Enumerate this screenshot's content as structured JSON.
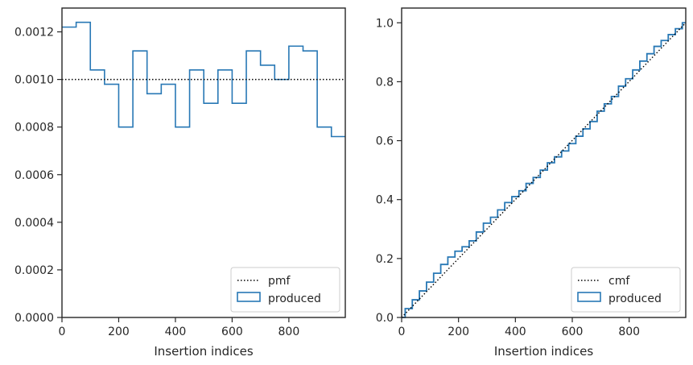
{
  "chart_data": [
    {
      "type": "histogram",
      "xlabel": "Insertion indices",
      "ylabel": "",
      "xlim": [
        0,
        999
      ],
      "ylim": [
        0,
        0.0013
      ],
      "x_ticks": [
        0,
        200,
        400,
        600,
        800
      ],
      "y_ticks": [
        0,
        0.0002,
        0.0004,
        0.0006,
        0.0008,
        0.001,
        0.0012
      ],
      "x_tick_labels": [
        "0",
        "200",
        "400",
        "600",
        "800"
      ],
      "y_tick_labels": [
        "0.0000",
        "0.0002",
        "0.0004",
        "0.0006",
        "0.0008",
        "0.0010",
        "0.0012"
      ],
      "bin_edges": [
        0,
        50,
        100,
        150,
        200,
        250,
        300,
        350,
        400,
        450,
        500,
        550,
        600,
        650,
        700,
        750,
        800,
        850,
        900,
        950,
        999
      ],
      "produced": [
        0.00122,
        0.00124,
        0.00104,
        0.00098,
        0.0008,
        0.00112,
        0.00094,
        0.00098,
        0.0008,
        0.00104,
        0.0009,
        0.00104,
        0.0009,
        0.00112,
        0.00106,
        0.001,
        0.00114,
        0.00112,
        0.0008,
        0.00076
      ],
      "pmf": 0.001,
      "legend": {
        "position": "lower right",
        "entries": [
          "pmf",
          "produced"
        ]
      },
      "colors": {
        "produced": "#2878b5",
        "pmf": "#000000"
      }
    },
    {
      "type": "line",
      "xlabel": "Insertion indices",
      "ylabel": "",
      "xlim": [
        0,
        999
      ],
      "ylim": [
        0,
        1.05
      ],
      "x_ticks": [
        0,
        200,
        400,
        600,
        800
      ],
      "y_ticks": [
        0,
        0.2,
        0.4,
        0.6,
        0.8,
        1.0
      ],
      "x_tick_labels": [
        "0",
        "200",
        "400",
        "600",
        "800"
      ],
      "y_tick_labels": [
        "0.0",
        "0.2",
        "0.4",
        "0.6",
        "0.8",
        "1.0"
      ],
      "produced": {
        "x": [
          0,
          25,
          50,
          75,
          100,
          125,
          150,
          175,
          200,
          225,
          250,
          275,
          300,
          325,
          350,
          375,
          400,
          425,
          450,
          475,
          500,
          525,
          550,
          575,
          600,
          625,
          650,
          675,
          700,
          725,
          750,
          775,
          800,
          825,
          850,
          875,
          900,
          925,
          950,
          975,
          999
        ],
        "y": [
          0,
          0.03,
          0.06,
          0.09,
          0.12,
          0.15,
          0.18,
          0.205,
          0.225,
          0.24,
          0.26,
          0.29,
          0.32,
          0.34,
          0.365,
          0.39,
          0.41,
          0.43,
          0.455,
          0.475,
          0.5,
          0.525,
          0.545,
          0.565,
          0.59,
          0.615,
          0.64,
          0.665,
          0.7,
          0.725,
          0.75,
          0.785,
          0.81,
          0.84,
          0.87,
          0.895,
          0.92,
          0.94,
          0.96,
          0.98,
          1.0
        ]
      },
      "cmf": {
        "x": [
          0,
          999
        ],
        "y": [
          0,
          1.0
        ]
      },
      "legend": {
        "position": "lower right",
        "entries": [
          "cmf",
          "produced"
        ]
      },
      "colors": {
        "produced": "#2878b5",
        "cmf": "#000000"
      }
    }
  ]
}
